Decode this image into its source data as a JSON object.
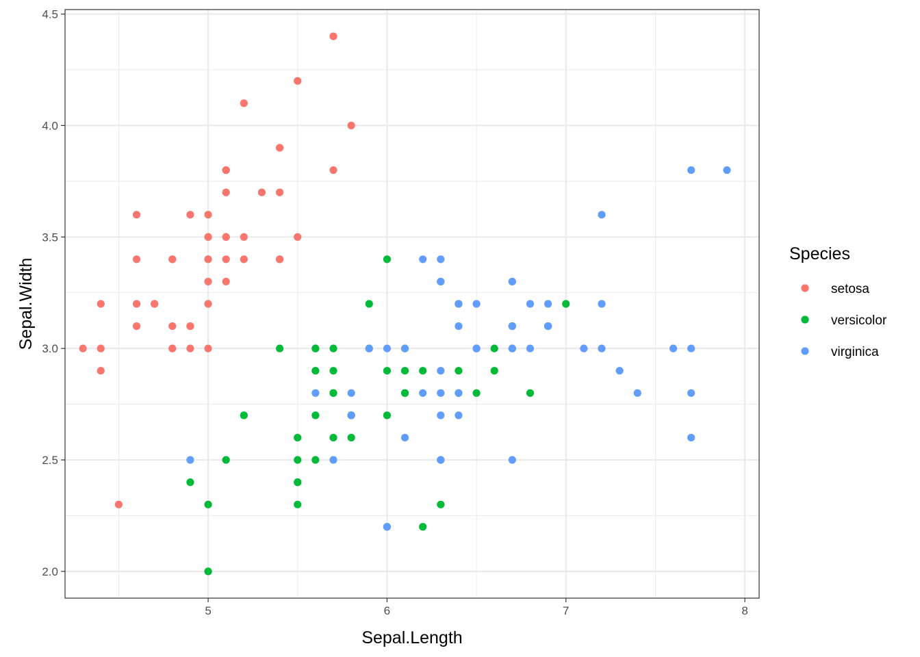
{
  "chart_data": {
    "type": "scatter",
    "xlabel": "Sepal.Length",
    "ylabel": "Sepal.Width",
    "xlim": [
      4.2,
      8.08
    ],
    "ylim": [
      1.88,
      4.52
    ],
    "x_ticks": [
      5,
      6,
      7,
      8
    ],
    "x_tick_labels": [
      "5",
      "6",
      "7",
      "8"
    ],
    "x_minor_ticks": [
      4.5,
      5.5,
      6.5,
      7.5
    ],
    "y_ticks": [
      2.0,
      2.5,
      3.0,
      3.5,
      4.0,
      4.5
    ],
    "y_tick_labels": [
      "2.0",
      "2.5",
      "3.0",
      "3.5",
      "4.0",
      "4.5"
    ],
    "y_minor_ticks": [
      2.25,
      2.75,
      3.25,
      3.75,
      4.25
    ],
    "grid": true,
    "legend": {
      "title": "Species",
      "position": "right"
    },
    "series": [
      {
        "name": "setosa",
        "color": "#F8766D",
        "points": [
          [
            5.1,
            3.5
          ],
          [
            4.9,
            3.0
          ],
          [
            4.7,
            3.2
          ],
          [
            4.6,
            3.1
          ],
          [
            5.0,
            3.6
          ],
          [
            5.4,
            3.9
          ],
          [
            4.6,
            3.4
          ],
          [
            5.0,
            3.4
          ],
          [
            4.4,
            2.9
          ],
          [
            4.9,
            3.1
          ],
          [
            5.4,
            3.7
          ],
          [
            4.8,
            3.4
          ],
          [
            4.8,
            3.0
          ],
          [
            4.3,
            3.0
          ],
          [
            5.8,
            4.0
          ],
          [
            5.7,
            4.4
          ],
          [
            5.4,
            3.9
          ],
          [
            5.1,
            3.5
          ],
          [
            5.7,
            3.8
          ],
          [
            5.1,
            3.8
          ],
          [
            5.4,
            3.4
          ],
          [
            5.1,
            3.7
          ],
          [
            4.6,
            3.6
          ],
          [
            5.1,
            3.3
          ],
          [
            4.8,
            3.4
          ],
          [
            5.0,
            3.0
          ],
          [
            5.0,
            3.4
          ],
          [
            5.2,
            3.5
          ],
          [
            5.2,
            3.4
          ],
          [
            4.7,
            3.2
          ],
          [
            4.8,
            3.1
          ],
          [
            5.4,
            3.4
          ],
          [
            5.2,
            4.1
          ],
          [
            5.5,
            4.2
          ],
          [
            4.9,
            3.1
          ],
          [
            5.0,
            3.2
          ],
          [
            5.5,
            3.5
          ],
          [
            4.9,
            3.6
          ],
          [
            4.4,
            3.0
          ],
          [
            5.1,
            3.4
          ],
          [
            5.0,
            3.5
          ],
          [
            4.5,
            2.3
          ],
          [
            4.4,
            3.2
          ],
          [
            5.0,
            3.5
          ],
          [
            5.1,
            3.8
          ],
          [
            4.8,
            3.0
          ],
          [
            5.1,
            3.8
          ],
          [
            4.6,
            3.2
          ],
          [
            5.3,
            3.7
          ],
          [
            5.0,
            3.3
          ]
        ]
      },
      {
        "name": "versicolor",
        "color": "#00BA38",
        "points": [
          [
            7.0,
            3.2
          ],
          [
            6.4,
            3.2
          ],
          [
            6.9,
            3.1
          ],
          [
            5.5,
            2.3
          ],
          [
            6.5,
            2.8
          ],
          [
            5.7,
            2.8
          ],
          [
            6.3,
            3.3
          ],
          [
            4.9,
            2.4
          ],
          [
            6.6,
            2.9
          ],
          [
            5.2,
            2.7
          ],
          [
            5.0,
            2.0
          ],
          [
            5.9,
            3.0
          ],
          [
            6.0,
            2.2
          ],
          [
            6.1,
            2.9
          ],
          [
            5.6,
            2.9
          ],
          [
            6.7,
            3.1
          ],
          [
            5.6,
            3.0
          ],
          [
            5.8,
            2.7
          ],
          [
            6.2,
            2.2
          ],
          [
            5.6,
            2.5
          ],
          [
            5.9,
            3.2
          ],
          [
            6.1,
            2.8
          ],
          [
            6.3,
            2.5
          ],
          [
            6.1,
            2.8
          ],
          [
            6.4,
            2.9
          ],
          [
            6.6,
            3.0
          ],
          [
            6.8,
            2.8
          ],
          [
            6.7,
            3.0
          ],
          [
            6.0,
            2.9
          ],
          [
            5.7,
            2.6
          ],
          [
            5.5,
            2.4
          ],
          [
            5.5,
            2.4
          ],
          [
            5.8,
            2.7
          ],
          [
            6.0,
            2.7
          ],
          [
            5.4,
            3.0
          ],
          [
            6.0,
            3.4
          ],
          [
            6.7,
            3.1
          ],
          [
            6.3,
            2.3
          ],
          [
            5.6,
            3.0
          ],
          [
            5.5,
            2.5
          ],
          [
            5.5,
            2.6
          ],
          [
            6.1,
            3.0
          ],
          [
            5.8,
            2.6
          ],
          [
            5.0,
            2.3
          ],
          [
            5.6,
            2.7
          ],
          [
            5.7,
            3.0
          ],
          [
            5.7,
            2.9
          ],
          [
            6.2,
            2.9
          ],
          [
            5.1,
            2.5
          ],
          [
            5.7,
            2.8
          ]
        ]
      },
      {
        "name": "virginica",
        "color": "#619CFF",
        "points": [
          [
            6.3,
            3.3
          ],
          [
            5.8,
            2.7
          ],
          [
            7.1,
            3.0
          ],
          [
            6.3,
            2.9
          ],
          [
            6.5,
            3.0
          ],
          [
            7.6,
            3.0
          ],
          [
            4.9,
            2.5
          ],
          [
            7.3,
            2.9
          ],
          [
            6.7,
            2.5
          ],
          [
            7.2,
            3.6
          ],
          [
            6.5,
            3.2
          ],
          [
            6.4,
            2.7
          ],
          [
            6.8,
            3.0
          ],
          [
            5.7,
            2.5
          ],
          [
            5.8,
            2.8
          ],
          [
            6.4,
            3.2
          ],
          [
            6.5,
            3.0
          ],
          [
            7.7,
            3.8
          ],
          [
            7.7,
            2.6
          ],
          [
            6.0,
            2.2
          ],
          [
            6.9,
            3.2
          ],
          [
            5.6,
            2.8
          ],
          [
            7.7,
            2.8
          ],
          [
            6.3,
            2.7
          ],
          [
            6.7,
            3.3
          ],
          [
            7.2,
            3.2
          ],
          [
            6.2,
            2.8
          ],
          [
            6.1,
            3.0
          ],
          [
            6.4,
            2.8
          ],
          [
            7.2,
            3.0
          ],
          [
            7.4,
            2.8
          ],
          [
            7.9,
            3.8
          ],
          [
            6.4,
            2.8
          ],
          [
            6.3,
            2.8
          ],
          [
            6.1,
            2.6
          ],
          [
            7.7,
            3.0
          ],
          [
            6.3,
            3.4
          ],
          [
            6.4,
            3.1
          ],
          [
            6.0,
            3.0
          ],
          [
            6.9,
            3.1
          ],
          [
            6.7,
            3.1
          ],
          [
            6.9,
            3.1
          ],
          [
            5.8,
            2.7
          ],
          [
            6.8,
            3.2
          ],
          [
            6.7,
            3.3
          ],
          [
            6.7,
            3.0
          ],
          [
            6.3,
            2.5
          ],
          [
            6.5,
            3.0
          ],
          [
            6.2,
            3.4
          ],
          [
            5.9,
            3.0
          ]
        ]
      }
    ]
  }
}
